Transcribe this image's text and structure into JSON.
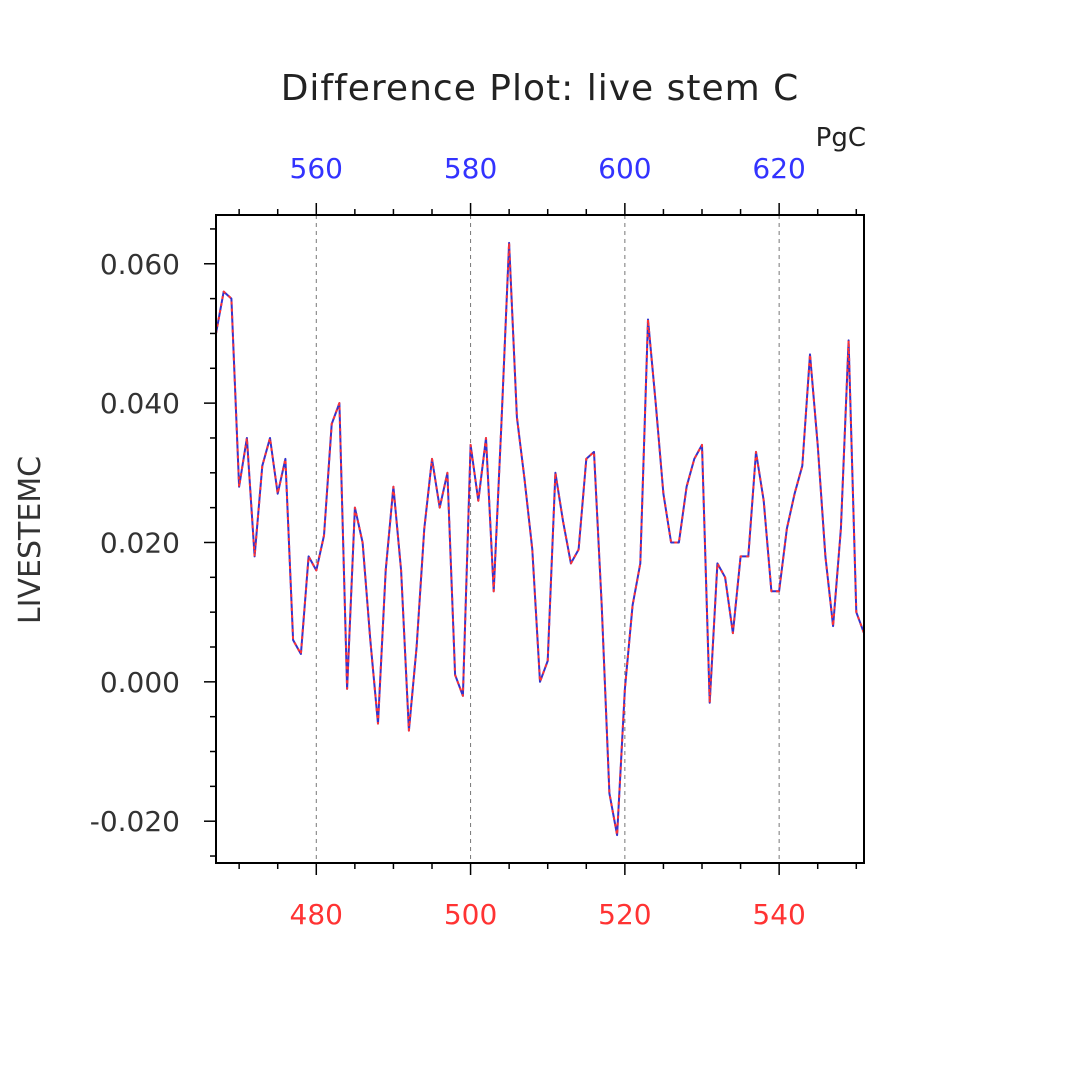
{
  "chart_data": {
    "type": "line",
    "title": "Difference Plot: live stem C",
    "units": "PgC",
    "ylabel": "LIVESTEMC",
    "xlim": [
      467,
      551
    ],
    "ylim": [
      -0.026,
      0.067
    ],
    "y_ticks": [
      "-0.020",
      "0.000",
      "0.020",
      "0.040",
      "0.060"
    ],
    "y_tick_values": [
      -0.02,
      0.0,
      0.02,
      0.04,
      0.06
    ],
    "bottom_axis": {
      "color": "#ff3333",
      "ticks": [
        "480",
        "500",
        "520",
        "540"
      ],
      "tick_values": [
        480,
        500,
        520,
        540
      ]
    },
    "top_axis": {
      "color": "#3333ff",
      "ticks": [
        "560",
        "580",
        "600",
        "620"
      ],
      "tick_values": [
        560,
        580,
        600,
        620
      ],
      "offset": 80
    },
    "grid": "vertical-dashed",
    "series": [
      {
        "color": "#3333cc",
        "style": "solid",
        "x": [
          467,
          468,
          469,
          470,
          471,
          472,
          473,
          474,
          475,
          476,
          477,
          478,
          479,
          480,
          481,
          482,
          483,
          484,
          485,
          486,
          487,
          488,
          489,
          490,
          491,
          492,
          493,
          494,
          495,
          496,
          497,
          498,
          499,
          500,
          501,
          502,
          503,
          504,
          505,
          506,
          507,
          508,
          509,
          510,
          511,
          512,
          513,
          514,
          515,
          516,
          517,
          518,
          519,
          520,
          521,
          522,
          523,
          524,
          525,
          526,
          527,
          528,
          529,
          530,
          531,
          532,
          533,
          534,
          535,
          536,
          537,
          538,
          539,
          540,
          541,
          542,
          543,
          544,
          545,
          546,
          547,
          548,
          549,
          550,
          551
        ],
        "y": [
          0.05,
          0.056,
          0.055,
          0.028,
          0.035,
          0.018,
          0.031,
          0.035,
          0.027,
          0.032,
          0.006,
          0.004,
          0.018,
          0.016,
          0.021,
          0.037,
          0.04,
          -0.001,
          0.025,
          0.02,
          0.006,
          -0.006,
          0.016,
          0.028,
          0.016,
          -0.007,
          0.005,
          0.022,
          0.032,
          0.025,
          0.03,
          0.001,
          -0.002,
          0.034,
          0.026,
          0.035,
          0.013,
          0.037,
          0.063,
          0.038,
          0.029,
          0.019,
          0.0,
          0.003,
          0.03,
          0.023,
          0.017,
          0.019,
          0.032,
          0.033,
          0.011,
          -0.016,
          -0.022,
          -0.001,
          0.011,
          0.017,
          0.052,
          0.04,
          0.027,
          0.02,
          0.02,
          0.028,
          0.032,
          0.034,
          -0.003,
          0.017,
          0.015,
          0.007,
          0.018,
          0.018,
          0.033,
          0.026,
          0.013,
          0.013,
          0.022,
          0.027,
          0.031,
          0.047,
          0.034,
          0.018,
          0.008,
          0.022,
          0.049,
          0.01,
          0.007
        ]
      },
      {
        "color": "#ff3333",
        "style": "dashed",
        "x": [
          467,
          468,
          469,
          470,
          471,
          472,
          473,
          474,
          475,
          476,
          477,
          478,
          479,
          480,
          481,
          482,
          483,
          484,
          485,
          486,
          487,
          488,
          489,
          490,
          491,
          492,
          493,
          494,
          495,
          496,
          497,
          498,
          499,
          500,
          501,
          502,
          503,
          504,
          505,
          506,
          507,
          508,
          509,
          510,
          511,
          512,
          513,
          514,
          515,
          516,
          517,
          518,
          519,
          520,
          521,
          522,
          523,
          524,
          525,
          526,
          527,
          528,
          529,
          530,
          531,
          532,
          533,
          534,
          535,
          536,
          537,
          538,
          539,
          540,
          541,
          542,
          543,
          544,
          545,
          546,
          547,
          548,
          549,
          550,
          551
        ],
        "y": [
          0.05,
          0.056,
          0.055,
          0.028,
          0.035,
          0.018,
          0.031,
          0.035,
          0.027,
          0.032,
          0.006,
          0.004,
          0.018,
          0.016,
          0.021,
          0.037,
          0.04,
          -0.001,
          0.025,
          0.02,
          0.006,
          -0.006,
          0.016,
          0.028,
          0.016,
          -0.007,
          0.005,
          0.022,
          0.032,
          0.025,
          0.03,
          0.001,
          -0.002,
          0.034,
          0.026,
          0.035,
          0.013,
          0.037,
          0.063,
          0.038,
          0.029,
          0.019,
          0.0,
          0.003,
          0.03,
          0.023,
          0.017,
          0.019,
          0.032,
          0.033,
          0.011,
          -0.016,
          -0.022,
          -0.001,
          0.011,
          0.017,
          0.052,
          0.04,
          0.027,
          0.02,
          0.02,
          0.028,
          0.032,
          0.034,
          -0.003,
          0.017,
          0.015,
          0.007,
          0.018,
          0.018,
          0.033,
          0.026,
          0.013,
          0.013,
          0.022,
          0.027,
          0.031,
          0.047,
          0.034,
          0.018,
          0.008,
          0.022,
          0.049,
          0.01,
          0.007
        ]
      }
    ]
  }
}
